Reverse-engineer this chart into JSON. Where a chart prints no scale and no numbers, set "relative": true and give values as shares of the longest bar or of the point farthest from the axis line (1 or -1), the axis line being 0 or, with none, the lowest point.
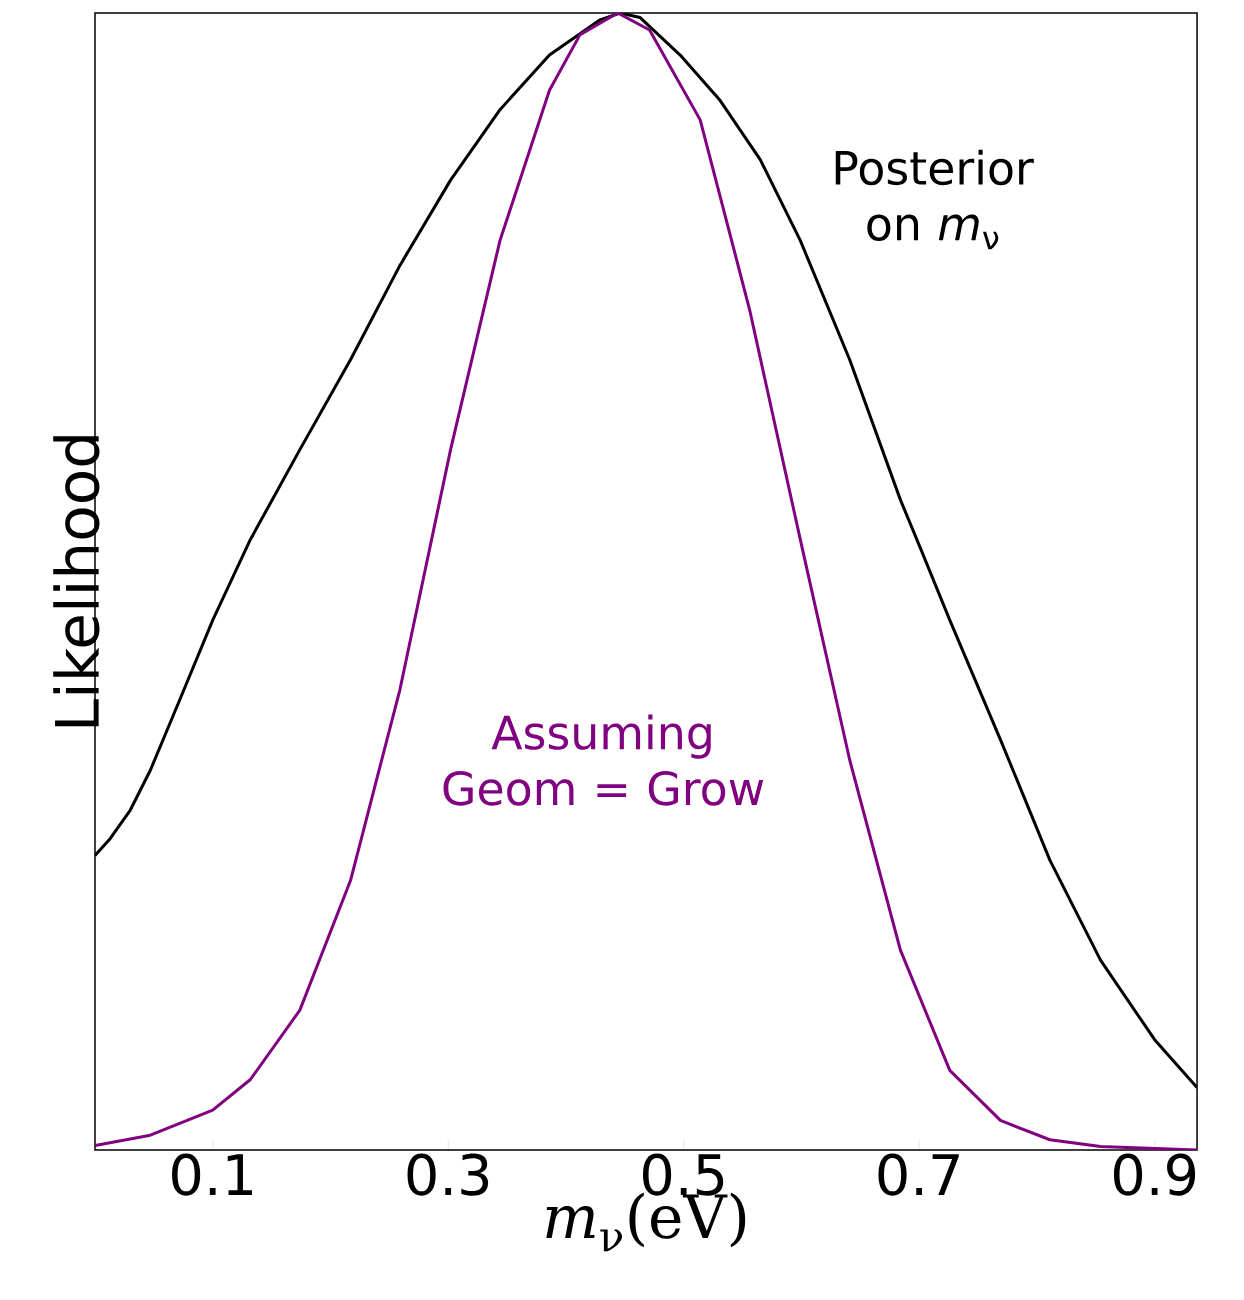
{
  "chart_data": {
    "type": "line",
    "relative": true,
    "xlabel": "*m*$_{ν}$(eV)",
    "ylabel": "Likelihood",
    "xlim": [
      0,
      0.936
    ],
    "xticks": [
      0.1,
      0.3,
      0.5,
      0.7,
      0.9
    ],
    "series": [
      {
        "name": "Posterior on *m*$_{ν}$",
        "color": "#000000",
        "x": [
          0,
          0.013,
          0.03,
          0.047,
          0.072,
          0.1,
          0.132,
          0.174,
          0.217,
          0.259,
          0.302,
          0.344,
          0.386,
          0.429,
          0.446,
          0.463,
          0.497,
          0.531,
          0.565,
          0.599,
          0.641,
          0.684,
          0.7,
          0.726,
          0.769,
          0.811,
          0.854,
          0.9,
          0.936
        ],
        "values": [
          0.259,
          0.274,
          0.299,
          0.334,
          0.396,
          0.466,
          0.537,
          0.616,
          0.695,
          0.778,
          0.853,
          0.915,
          0.963,
          0.994,
          1,
          0.996,
          0.963,
          0.923,
          0.871,
          0.8,
          0.695,
          0.572,
          0.532,
          0.466,
          0.361,
          0.255,
          0.167,
          0.097,
          0.055
        ]
      },
      {
        "name": "Assuming Geom = Grow",
        "color": "#800080",
        "x": [
          0,
          0.047,
          0.1,
          0.132,
          0.174,
          0.217,
          0.259,
          0.302,
          0.344,
          0.386,
          0.412,
          0.444,
          0.471,
          0.514,
          0.556,
          0.599,
          0.641,
          0.684,
          0.726,
          0.769,
          0.811,
          0.854,
          0.936
        ],
        "values": [
          0.004,
          0.013,
          0.035,
          0.062,
          0.123,
          0.237,
          0.405,
          0.616,
          0.8,
          0.932,
          0.981,
          1,
          0.985,
          0.906,
          0.739,
          0.537,
          0.343,
          0.176,
          0.07,
          0.026,
          0.009,
          0.003,
          0
        ]
      }
    ]
  }
}
